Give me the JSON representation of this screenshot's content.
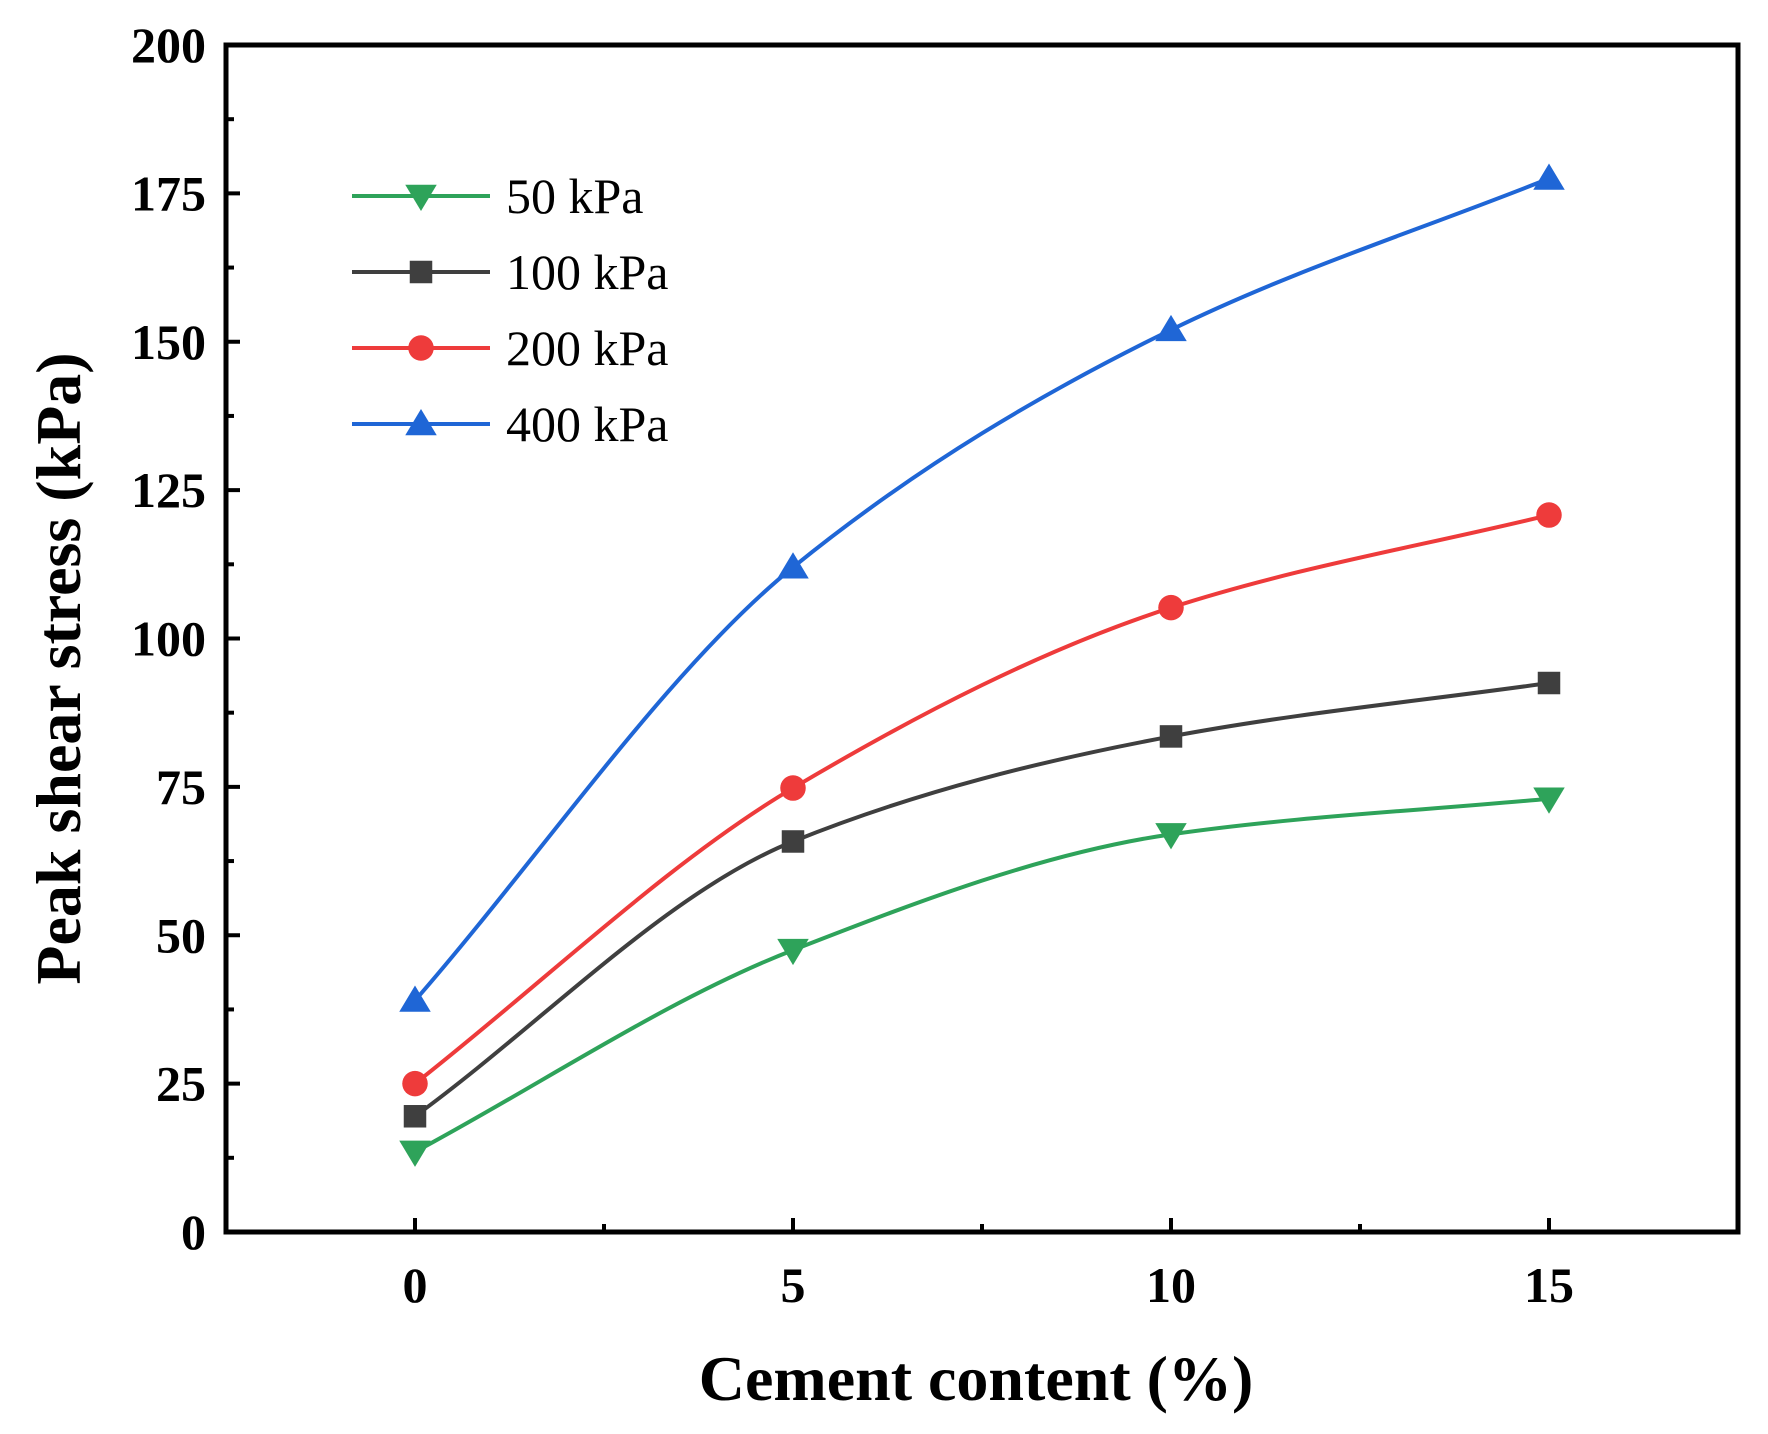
{
  "chart_data": {
    "type": "line",
    "title": "",
    "xlabel": "Cement content (%)",
    "ylabel": "Peak shear stress (kPa)",
    "xlim": [
      -2.5,
      17.5
    ],
    "ylim": [
      0,
      200
    ],
    "xticks": [
      0,
      5,
      10,
      15
    ],
    "yticks": [
      0,
      25,
      50,
      75,
      100,
      125,
      150,
      175,
      200
    ],
    "grid": false,
    "legend_position": "top-left",
    "x": [
      0,
      5,
      10,
      15
    ],
    "series": [
      {
        "name": "50 kPa",
        "marker": "triangle-down",
        "color": "#2ea35a",
        "values": [
          13.5,
          47.5,
          67,
          73
        ]
      },
      {
        "name": "100 kPa",
        "marker": "square",
        "color": "#3f3f3f",
        "values": [
          19.5,
          65.8,
          83.5,
          92.5
        ]
      },
      {
        "name": "200 kPa",
        "marker": "circle",
        "color": "#ee3b3b",
        "values": [
          25,
          74.8,
          105.2,
          120.8
        ]
      },
      {
        "name": "400 kPa",
        "marker": "triangle-up",
        "color": "#1f66d6",
        "values": [
          39,
          112,
          152,
          177.5
        ]
      }
    ]
  }
}
